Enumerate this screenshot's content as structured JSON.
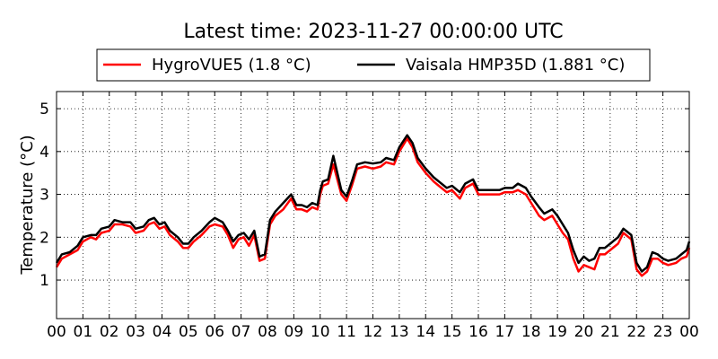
{
  "chart_data": {
    "type": "line",
    "title": "Latest time: 2023-11-27 00:00:00 UTC",
    "ylabel": "Temperature (°C)",
    "xlabel": "",
    "xlim": [
      0,
      24
    ],
    "ylim": [
      0.1,
      5.4
    ],
    "grid": true,
    "legend_position": "top",
    "x_ticks": [
      "00",
      "01",
      "02",
      "03",
      "04",
      "05",
      "06",
      "07",
      "08",
      "09",
      "10",
      "11",
      "12",
      "13",
      "14",
      "15",
      "16",
      "17",
      "18",
      "19",
      "20",
      "21",
      "22",
      "23",
      "00"
    ],
    "y_ticks": [
      "1",
      "2",
      "3",
      "4",
      "5"
    ],
    "series": [
      {
        "name": "HygroVUE5 (1.8 °C)",
        "color": "#ff0000",
        "x": [
          0,
          0.2,
          0.5,
          0.8,
          1.0,
          1.3,
          1.5,
          1.7,
          2.0,
          2.2,
          2.5,
          2.8,
          3.0,
          3.3,
          3.5,
          3.7,
          3.9,
          4.1,
          4.3,
          4.6,
          4.8,
          5.0,
          5.2,
          5.5,
          5.8,
          6.0,
          6.3,
          6.5,
          6.7,
          6.9,
          7.1,
          7.3,
          7.5,
          7.7,
          7.9,
          8.1,
          8.3,
          8.6,
          8.9,
          9.1,
          9.3,
          9.5,
          9.7,
          9.9,
          10.0,
          10.1,
          10.3,
          10.5,
          10.8,
          11.0,
          11.2,
          11.4,
          11.7,
          12.0,
          12.3,
          12.5,
          12.8,
          13.0,
          13.3,
          13.5,
          13.7,
          14.0,
          14.3,
          14.5,
          14.8,
          15.0,
          15.3,
          15.5,
          15.8,
          16.0,
          16.3,
          16.5,
          16.8,
          17.0,
          17.3,
          17.5,
          17.8,
          18.0,
          18.3,
          18.5,
          18.8,
          19.0,
          19.2,
          19.4,
          19.6,
          19.8,
          20.0,
          20.2,
          20.4,
          20.6,
          20.8,
          21.0,
          21.3,
          21.5,
          21.8,
          22.0,
          22.2,
          22.4,
          22.6,
          22.8,
          23.0,
          23.2,
          23.5,
          23.7,
          23.9,
          24.0
        ],
        "y": [
          1.3,
          1.5,
          1.6,
          1.7,
          1.9,
          2.0,
          1.95,
          2.1,
          2.15,
          2.3,
          2.3,
          2.25,
          2.1,
          2.15,
          2.3,
          2.35,
          2.2,
          2.25,
          2.05,
          1.9,
          1.75,
          1.75,
          1.9,
          2.05,
          2.25,
          2.3,
          2.25,
          2.05,
          1.75,
          1.95,
          2.0,
          1.8,
          2.05,
          1.45,
          1.5,
          2.3,
          2.5,
          2.65,
          2.9,
          2.65,
          2.65,
          2.6,
          2.7,
          2.65,
          3.0,
          3.2,
          3.25,
          3.7,
          3.0,
          2.85,
          3.2,
          3.6,
          3.65,
          3.6,
          3.65,
          3.75,
          3.7,
          4.0,
          4.3,
          4.1,
          3.75,
          3.5,
          3.3,
          3.2,
          3.05,
          3.1,
          2.9,
          3.15,
          3.25,
          3.0,
          3.0,
          3.0,
          3.0,
          3.05,
          3.05,
          3.1,
          3.0,
          2.8,
          2.5,
          2.4,
          2.5,
          2.3,
          2.1,
          1.95,
          1.5,
          1.2,
          1.35,
          1.3,
          1.25,
          1.6,
          1.6,
          1.7,
          1.85,
          2.1,
          1.95,
          1.25,
          1.1,
          1.2,
          1.5,
          1.5,
          1.4,
          1.35,
          1.4,
          1.5,
          1.55,
          1.75
        ]
      },
      {
        "name": "Vaisala HMP35D (1.881 °C)",
        "color": "#000000",
        "x": [
          0,
          0.2,
          0.5,
          0.8,
          1.0,
          1.3,
          1.5,
          1.7,
          2.0,
          2.2,
          2.5,
          2.8,
          3.0,
          3.3,
          3.5,
          3.7,
          3.9,
          4.1,
          4.3,
          4.6,
          4.8,
          5.0,
          5.2,
          5.5,
          5.8,
          6.0,
          6.3,
          6.5,
          6.7,
          6.9,
          7.1,
          7.3,
          7.5,
          7.7,
          7.9,
          8.1,
          8.3,
          8.6,
          8.9,
          9.1,
          9.3,
          9.5,
          9.7,
          9.9,
          10.0,
          10.1,
          10.3,
          10.5,
          10.8,
          11.0,
          11.2,
          11.4,
          11.7,
          12.0,
          12.3,
          12.5,
          12.8,
          13.0,
          13.3,
          13.5,
          13.7,
          14.0,
          14.3,
          14.5,
          14.8,
          15.0,
          15.3,
          15.5,
          15.8,
          16.0,
          16.3,
          16.5,
          16.8,
          17.0,
          17.3,
          17.5,
          17.8,
          18.0,
          18.3,
          18.5,
          18.8,
          19.0,
          19.2,
          19.4,
          19.6,
          19.8,
          20.0,
          20.2,
          20.4,
          20.6,
          20.8,
          21.0,
          21.3,
          21.5,
          21.8,
          22.0,
          22.2,
          22.4,
          22.6,
          22.8,
          23.0,
          23.2,
          23.5,
          23.7,
          23.9,
          24.0
        ],
        "y": [
          1.4,
          1.6,
          1.65,
          1.8,
          2.0,
          2.05,
          2.05,
          2.2,
          2.25,
          2.4,
          2.35,
          2.35,
          2.2,
          2.25,
          2.4,
          2.45,
          2.3,
          2.35,
          2.15,
          2.0,
          1.85,
          1.85,
          2.0,
          2.15,
          2.35,
          2.45,
          2.35,
          2.15,
          1.9,
          2.05,
          2.1,
          1.95,
          2.15,
          1.55,
          1.6,
          2.4,
          2.6,
          2.8,
          3.0,
          2.75,
          2.75,
          2.7,
          2.8,
          2.75,
          3.1,
          3.3,
          3.35,
          3.9,
          3.1,
          2.95,
          3.3,
          3.7,
          3.75,
          3.72,
          3.75,
          3.85,
          3.8,
          4.1,
          4.38,
          4.2,
          3.85,
          3.6,
          3.4,
          3.3,
          3.15,
          3.2,
          3.05,
          3.25,
          3.35,
          3.1,
          3.1,
          3.1,
          3.1,
          3.15,
          3.15,
          3.25,
          3.15,
          2.95,
          2.7,
          2.55,
          2.65,
          2.5,
          2.3,
          2.1,
          1.7,
          1.4,
          1.55,
          1.45,
          1.5,
          1.75,
          1.75,
          1.85,
          2.0,
          2.2,
          2.05,
          1.4,
          1.2,
          1.3,
          1.65,
          1.6,
          1.5,
          1.45,
          1.5,
          1.6,
          1.7,
          1.9
        ]
      }
    ]
  }
}
